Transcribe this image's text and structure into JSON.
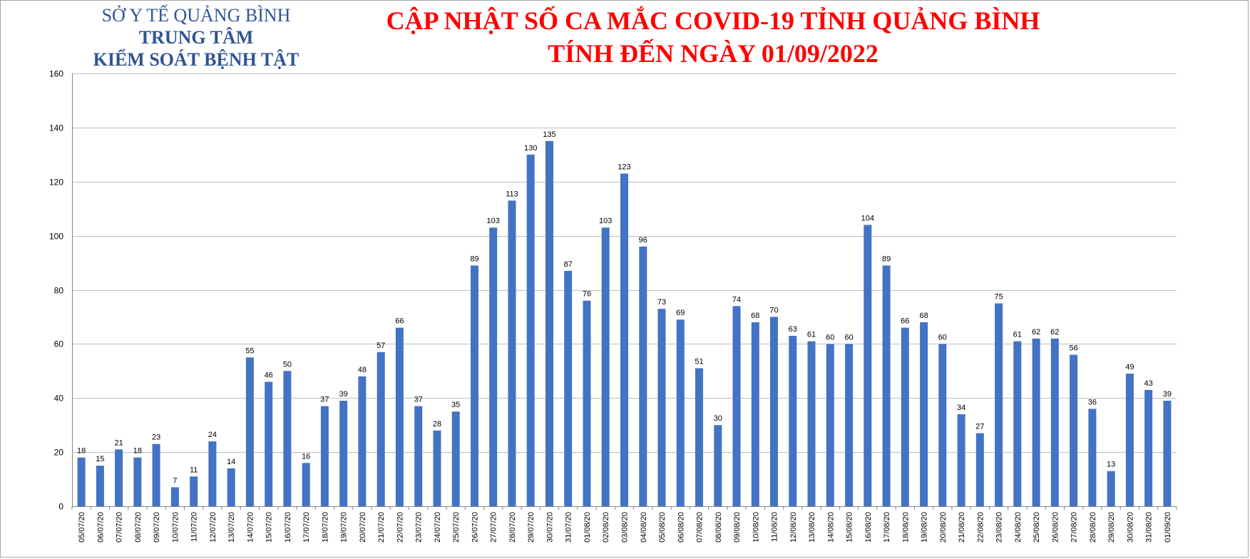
{
  "header": {
    "org_line1": "SỞ Y TẾ QUẢNG BÌNH",
    "org_line2": "TRUNG TÂM",
    "org_line3": "KIỂM SOÁT BỆNH TẬT",
    "title_line1": "CẬP NHẬT SỐ CA MẮC COVID-19 TỈNH QUẢNG BÌNH",
    "title_line2": "TÍNH ĐẾN NGÀY 01/09/2022"
  },
  "colors": {
    "bar": "#4472c4",
    "title": "#ff0000",
    "org": "#2f5496",
    "grid": "#bfbfbf"
  },
  "chart_data": {
    "type": "bar",
    "title": "CẬP NHẬT SỐ CA MẮC COVID-19 TỈNH QUẢNG BÌNH",
    "subtitle": "TÍNH ĐẾN NGÀY 01/09/2022",
    "xlabel": "",
    "ylabel": "",
    "ylim": [
      0,
      160
    ],
    "yticks": [
      0,
      20,
      40,
      60,
      80,
      100,
      120,
      140,
      160
    ],
    "grid": true,
    "legend": "none",
    "categories": [
      "05/07/20",
      "06/07/20",
      "07/07/20",
      "08/07/20",
      "09/07/20",
      "10/07/20",
      "11/07/20",
      "12/07/20",
      "13/07/20",
      "14/07/20",
      "15/07/20",
      "16/07/20",
      "17/07/20",
      "18/07/20",
      "19/07/20",
      "20/07/20",
      "21/07/20",
      "22/07/20",
      "23/07/20",
      "24/07/20",
      "25/07/20",
      "26/07/20",
      "27/07/20",
      "28/07/20",
      "29/07/20",
      "30/07/20",
      "31/07/20",
      "01/08/20",
      "02/08/20",
      "03/08/20",
      "04/08/20",
      "05/08/20",
      "06/08/20",
      "07/08/20",
      "08/08/20",
      "09/08/20",
      "10/08/20",
      "11/08/20",
      "12/08/20",
      "13/08/20",
      "14/08/20",
      "15/08/20",
      "16/08/20",
      "17/08/20",
      "18/08/20",
      "19/08/20",
      "20/08/20",
      "21/08/20",
      "22/08/20",
      "23/08/20",
      "24/08/20",
      "25/08/20",
      "26/08/20",
      "27/08/20",
      "28/08/20",
      "29/08/20",
      "30/08/20",
      "31/08/20",
      "01/09/20"
    ],
    "values": [
      18,
      15,
      21,
      18,
      23,
      7,
      11,
      24,
      14,
      55,
      46,
      50,
      16,
      37,
      39,
      48,
      57,
      66,
      37,
      28,
      35,
      89,
      103,
      113,
      130,
      135,
      87,
      76,
      103,
      123,
      96,
      73,
      69,
      51,
      30,
      74,
      68,
      70,
      63,
      61,
      60,
      60,
      104,
      89,
      66,
      68,
      60,
      34,
      27,
      75,
      61,
      62,
      62,
      56,
      36,
      13,
      49,
      43,
      39
    ]
  }
}
